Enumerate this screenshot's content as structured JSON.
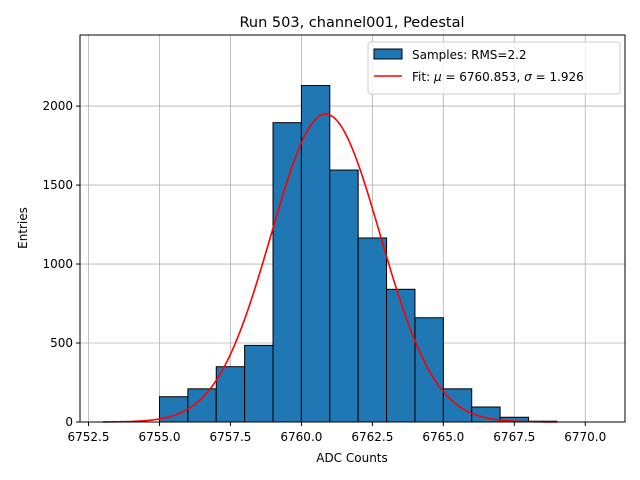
{
  "chart_data": {
    "type": "bar",
    "title": "Run 503, channel001, Pedestal",
    "xlabel": "ADC Counts",
    "ylabel": "Entries",
    "xlim": [
      6752.2,
      6771.4
    ],
    "ylim": [
      0,
      2450
    ],
    "grid": true,
    "legend_placement": "top-right",
    "x_ticks": [
      6752.5,
      6755.0,
      6757.5,
      6760.0,
      6762.5,
      6765.0,
      6767.5,
      6770.0
    ],
    "x_tick_labels": [
      "6752.5",
      "6755.0",
      "6757.5",
      "6760.0",
      "6762.5",
      "6765.0",
      "6767.5",
      "6770.0"
    ],
    "y_ticks": [
      0,
      500,
      1000,
      1500,
      2000
    ],
    "y_tick_labels": [
      "0",
      "500",
      "1000",
      "1500",
      "2000"
    ],
    "histogram": {
      "name": "Samples: RMS=2.2",
      "color": "#1f77b4",
      "bins": [
        {
          "start": 6755,
          "end": 6756,
          "count": 160
        },
        {
          "start": 6756,
          "end": 6757,
          "count": 210
        },
        {
          "start": 6757,
          "end": 6758,
          "count": 350
        },
        {
          "start": 6758,
          "end": 6759,
          "count": 485
        },
        {
          "start": 6759,
          "end": 6760,
          "count": 1895
        },
        {
          "start": 6760,
          "end": 6761,
          "count": 2130
        },
        {
          "start": 6761,
          "end": 6762,
          "count": 1595
        },
        {
          "start": 6762,
          "end": 6763,
          "count": 1165
        },
        {
          "start": 6763,
          "end": 6764,
          "count": 840
        },
        {
          "start": 6764,
          "end": 6765,
          "count": 660
        },
        {
          "start": 6765,
          "end": 6766,
          "count": 210
        },
        {
          "start": 6766,
          "end": 6767,
          "count": 95
        },
        {
          "start": 6767,
          "end": 6768,
          "count": 30
        },
        {
          "start": 6768,
          "end": 6769,
          "count": 5
        }
      ]
    },
    "fit": {
      "name_prefix": "Fit: ",
      "mu_symbol": "μ",
      "mu_text": " = 6760.853, ",
      "sigma_symbol": "σ",
      "sigma_text": " = 1.926",
      "color": "#ff0000",
      "mu": 6760.853,
      "sigma": 1.926,
      "amplitude": 1950,
      "x_range": [
        6753,
        6769
      ]
    }
  }
}
